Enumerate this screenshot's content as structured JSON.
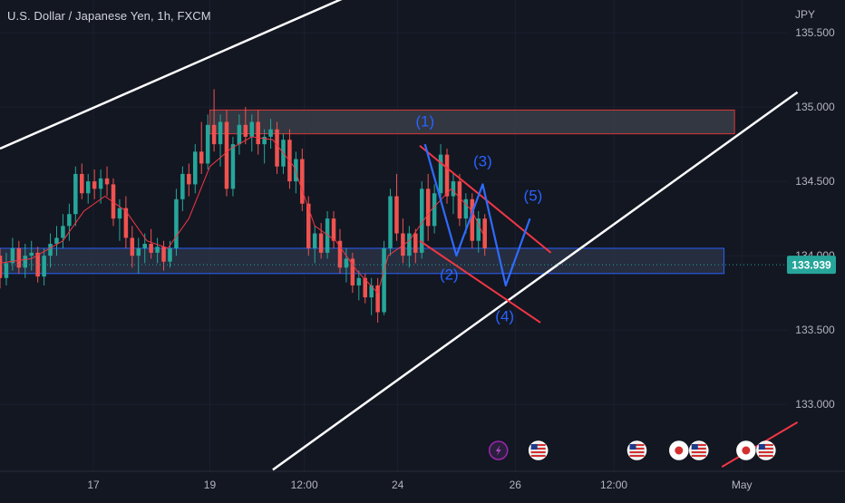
{
  "header": {
    "title": "U.S. Dollar / Japanese Yen, 1h, FXCM"
  },
  "colors": {
    "background": "#131722",
    "grid": "#1c2030",
    "up": "#26a69a",
    "down": "#ef5350",
    "ma": "#f23645",
    "channel": "#ffffff",
    "wave": "#2962ff",
    "zone_fill": "#2a3347",
    "price_tag": "#26a69a"
  },
  "chart_data": {
    "type": "candlestick",
    "symbol": "USDJPY",
    "interval": "1h",
    "currency_label": "JPY",
    "y_ticks": [
      "133.000",
      "133.500",
      "134.000",
      "134.500",
      "135.000",
      "135.500"
    ],
    "y_tick_values": [
      133.0,
      133.5,
      134.0,
      134.5,
      135.0,
      135.5
    ],
    "ylim": [
      132.55,
      135.72
    ],
    "x_ticks": [
      "17",
      "19",
      "12:00",
      "24",
      "26",
      "12:00",
      "May"
    ],
    "x_tick_positions": [
      -11.1,
      0,
      9,
      17.9,
      29.1,
      38.5,
      50.7
    ],
    "x_range": [
      -20,
      55
    ],
    "last_price": "133.939",
    "last_price_value": 133.939,
    "grid": true,
    "candle_ohlc": [
      [
        -20,
        134.0,
        134.05,
        133.78,
        133.85
      ],
      [
        -19.4,
        133.85,
        134.02,
        133.8,
        133.95
      ],
      [
        -18.8,
        133.95,
        134.12,
        133.9,
        134.05
      ],
      [
        -18.2,
        134.05,
        134.1,
        133.88,
        133.92
      ],
      [
        -17.6,
        133.92,
        134.08,
        133.85,
        134.0
      ],
      [
        -17.0,
        134.0,
        134.1,
        133.9,
        134.02
      ],
      [
        -16.4,
        134.02,
        134.06,
        133.82,
        133.86
      ],
      [
        -15.8,
        133.86,
        134.05,
        133.8,
        134.0
      ],
      [
        -15.2,
        134.0,
        134.15,
        133.92,
        134.08
      ],
      [
        -14.6,
        134.08,
        134.2,
        134.0,
        134.12
      ],
      [
        -14.0,
        134.12,
        134.28,
        134.05,
        134.2
      ],
      [
        -13.4,
        134.2,
        134.35,
        134.1,
        134.28
      ],
      [
        -12.8,
        134.28,
        134.6,
        134.2,
        134.55
      ],
      [
        -12.2,
        134.55,
        134.62,
        134.38,
        134.42
      ],
      [
        -11.6,
        134.42,
        134.55,
        134.35,
        134.5
      ],
      [
        -11.0,
        134.5,
        134.58,
        134.38,
        134.45
      ],
      [
        -10.4,
        134.45,
        134.58,
        134.35,
        134.52
      ],
      [
        -9.8,
        134.52,
        134.6,
        134.4,
        134.48
      ],
      [
        -9.2,
        134.48,
        134.52,
        134.2,
        134.25
      ],
      [
        -8.6,
        134.25,
        134.38,
        134.1,
        134.32
      ],
      [
        -8.0,
        134.32,
        134.4,
        134.05,
        134.12
      ],
      [
        -7.4,
        134.12,
        134.2,
        133.92,
        134.0
      ],
      [
        -6.8,
        134.0,
        134.12,
        133.88,
        134.05
      ],
      [
        -6.2,
        134.05,
        134.15,
        133.95,
        134.08
      ],
      [
        -5.6,
        134.08,
        134.18,
        133.98,
        134.02
      ],
      [
        -5.0,
        134.02,
        134.12,
        133.95,
        134.06
      ],
      [
        -4.4,
        134.06,
        134.1,
        133.9,
        133.96
      ],
      [
        -3.8,
        133.96,
        134.1,
        133.92,
        134.05
      ],
      [
        -3.2,
        134.05,
        134.45,
        134.0,
        134.38
      ],
      [
        -2.6,
        134.38,
        134.6,
        134.3,
        134.55
      ],
      [
        -2.0,
        134.55,
        134.62,
        134.4,
        134.48
      ],
      [
        -1.4,
        134.48,
        134.75,
        134.42,
        134.7
      ],
      [
        -0.8,
        134.7,
        134.9,
        134.55,
        134.62
      ],
      [
        -0.2,
        134.62,
        134.95,
        134.58,
        134.88
      ],
      [
        0.4,
        134.88,
        135.12,
        134.7,
        134.75
      ],
      [
        1.0,
        134.75,
        134.95,
        134.6,
        134.9
      ],
      [
        1.6,
        134.9,
        134.98,
        134.4,
        134.45
      ],
      [
        2.2,
        134.45,
        134.8,
        134.4,
        134.75
      ],
      [
        2.8,
        134.75,
        134.95,
        134.68,
        134.88
      ],
      [
        3.4,
        134.88,
        135.0,
        134.75,
        134.8
      ],
      [
        4.0,
        134.8,
        134.95,
        134.7,
        134.9
      ],
      [
        4.6,
        134.9,
        134.98,
        134.68,
        134.75
      ],
      [
        5.2,
        134.75,
        134.85,
        134.62,
        134.8
      ],
      [
        5.8,
        134.8,
        134.92,
        134.72,
        134.85
      ],
      [
        6.4,
        134.85,
        134.9,
        134.55,
        134.6
      ],
      [
        7.0,
        134.6,
        134.82,
        134.55,
        134.78
      ],
      [
        7.6,
        134.78,
        134.85,
        134.45,
        134.5
      ],
      [
        8.2,
        134.5,
        134.7,
        134.42,
        134.65
      ],
      [
        8.8,
        134.65,
        134.72,
        134.3,
        134.35
      ],
      [
        9.4,
        134.35,
        134.4,
        134.0,
        134.05
      ],
      [
        10.0,
        134.05,
        134.2,
        133.95,
        134.15
      ],
      [
        10.6,
        134.15,
        134.22,
        133.98,
        134.02
      ],
      [
        11.2,
        134.02,
        134.3,
        133.98,
        134.25
      ],
      [
        11.8,
        134.25,
        134.3,
        134.05,
        134.1
      ],
      [
        12.4,
        134.1,
        134.18,
        133.88,
        133.92
      ],
      [
        13.0,
        133.92,
        134.05,
        133.82,
        133.98
      ],
      [
        13.6,
        133.98,
        134.02,
        133.75,
        133.8
      ],
      [
        14.2,
        133.8,
        133.9,
        133.7,
        133.85
      ],
      [
        14.8,
        133.85,
        133.88,
        133.68,
        133.72
      ],
      [
        15.4,
        133.72,
        133.85,
        133.6,
        133.8
      ],
      [
        16.0,
        133.8,
        133.85,
        133.55,
        133.62
      ],
      [
        16.6,
        133.62,
        134.1,
        133.6,
        134.05
      ],
      [
        17.2,
        134.05,
        134.45,
        134.0,
        134.4
      ],
      [
        17.8,
        134.4,
        134.55,
        134.1,
        134.15
      ],
      [
        18.4,
        134.15,
        134.25,
        133.95,
        134.0
      ],
      [
        19.0,
        134.0,
        134.2,
        133.92,
        134.15
      ],
      [
        19.6,
        134.15,
        134.18,
        133.95,
        134.02
      ],
      [
        20.2,
        134.02,
        134.5,
        133.98,
        134.45
      ],
      [
        20.8,
        134.45,
        134.55,
        134.1,
        134.2
      ],
      [
        21.4,
        134.2,
        134.48,
        134.15,
        134.42
      ],
      [
        22.0,
        134.42,
        134.75,
        134.38,
        134.68
      ],
      [
        22.6,
        134.68,
        134.72,
        134.35,
        134.4
      ],
      [
        23.2,
        134.4,
        134.55,
        134.28,
        134.5
      ],
      [
        23.8,
        134.5,
        134.55,
        134.2,
        134.25
      ],
      [
        24.4,
        134.25,
        134.42,
        134.15,
        134.38
      ],
      [
        25.0,
        134.38,
        134.42,
        134.05,
        134.1
      ],
      [
        25.6,
        134.1,
        134.3,
        134.02,
        134.25
      ],
      [
        26.2,
        134.25,
        134.28,
        134.0,
        134.05
      ]
    ],
    "ma_line": [
      [
        -20,
        133.95
      ],
      [
        -17,
        133.98
      ],
      [
        -14,
        134.1
      ],
      [
        -12,
        134.3
      ],
      [
        -10,
        134.4
      ],
      [
        -8,
        134.3
      ],
      [
        -6,
        134.1
      ],
      [
        -4,
        134.05
      ],
      [
        -2,
        134.25
      ],
      [
        0,
        134.6
      ],
      [
        2,
        134.72
      ],
      [
        4,
        134.8
      ],
      [
        6,
        134.78
      ],
      [
        8,
        134.6
      ],
      [
        10,
        134.2
      ],
      [
        12,
        134.1
      ],
      [
        14,
        133.9
      ],
      [
        16,
        133.75
      ],
      [
        17,
        134.0
      ],
      [
        19,
        134.1
      ],
      [
        21,
        134.3
      ],
      [
        23,
        134.45
      ],
      [
        25,
        134.3
      ],
      [
        26,
        134.15
      ]
    ],
    "resistance_zone": {
      "x_start": 0,
      "x_end": 50,
      "low": 134.82,
      "high": 134.98
    },
    "support_zone": {
      "x_start": -20,
      "x_end": 49,
      "low": 133.88,
      "high": 134.05
    },
    "channel_lines": [
      {
        "x1": -20,
        "y1": 134.72,
        "x2": 13,
        "y2": 135.74
      },
      {
        "x1": 6,
        "y1": 132.56,
        "x2": 56,
        "y2": 135.1
      }
    ],
    "wedge_lines": [
      {
        "x1": 20,
        "y1": 134.74,
        "x2": 32.5,
        "y2": 134.02
      },
      {
        "x1": 20,
        "y1": 134.1,
        "x2": 31.5,
        "y2": 133.55
      }
    ],
    "wave_path": [
      [
        20.5,
        134.75
      ],
      [
        23.5,
        134.0
      ],
      [
        26,
        134.48
      ],
      [
        28.2,
        133.8
      ],
      [
        30.5,
        134.25
      ]
    ],
    "wave_labels": [
      {
        "text": "(1)",
        "x": 20.5,
        "y": 134.87
      },
      {
        "text": "(2)",
        "x": 22.8,
        "y": 133.84
      },
      {
        "text": "(3)",
        "x": 26,
        "y": 134.6
      },
      {
        "text": "(4)",
        "x": 28.1,
        "y": 133.56
      },
      {
        "text": "(5)",
        "x": 30.8,
        "y": 134.37
      }
    ],
    "event_icons": [
      {
        "x": 27.5,
        "kind": "lightning-icon"
      },
      {
        "x": 31.3,
        "kind": "us-flag-icon"
      },
      {
        "x": 40.7,
        "kind": "us-flag-icon"
      },
      {
        "x": 44.7,
        "kind": "japan-flag-icon"
      },
      {
        "x": 46.6,
        "kind": "us-flag-icon"
      },
      {
        "x": 51.1,
        "kind": "japan-flag-icon"
      },
      {
        "x": 53.0,
        "kind": "us-flag-icon"
      }
    ]
  }
}
